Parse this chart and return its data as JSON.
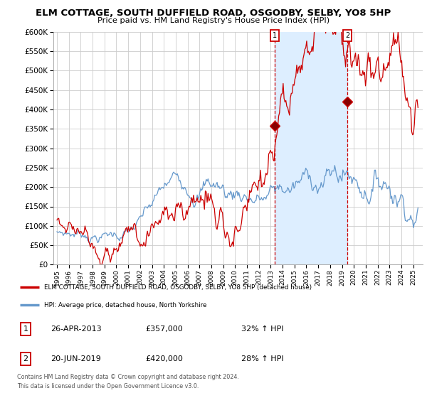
{
  "title": "ELM COTTAGE, SOUTH DUFFIELD ROAD, OSGODBY, SELBY, YO8 5HP",
  "subtitle": "Price paid vs. HM Land Registry's House Price Index (HPI)",
  "ylim": [
    0,
    600000
  ],
  "yticks": [
    0,
    50000,
    100000,
    150000,
    200000,
    250000,
    300000,
    350000,
    400000,
    450000,
    500000,
    550000,
    600000
  ],
  "ytick_labels": [
    "£0",
    "£50K",
    "£100K",
    "£150K",
    "£200K",
    "£250K",
    "£300K",
    "£350K",
    "£400K",
    "£450K",
    "£500K",
    "£550K",
    "£600K"
  ],
  "xlim_start": 1994.7,
  "xlim_end": 2025.8,
  "red_line_color": "#cc0000",
  "blue_line_color": "#6699cc",
  "shade_color": "#ddeeff",
  "background_color": "#ffffff",
  "grid_color": "#cccccc",
  "point1_x": 2013.32,
  "point1_y": 357000,
  "point2_x": 2019.47,
  "point2_y": 420000,
  "legend_line1": "ELM COTTAGE, SOUTH DUFFIELD ROAD, OSGODBY, SELBY, YO8 5HP (detached house)",
  "legend_line2": "HPI: Average price, detached house, North Yorkshire",
  "table_row1": [
    "1",
    "26-APR-2013",
    "£357,000",
    "32% ↑ HPI"
  ],
  "table_row2": [
    "2",
    "20-JUN-2019",
    "£420,000",
    "28% ↑ HPI"
  ],
  "footnote": "Contains HM Land Registry data © Crown copyright and database right 2024.\nThis data is licensed under the Open Government Licence v3.0."
}
